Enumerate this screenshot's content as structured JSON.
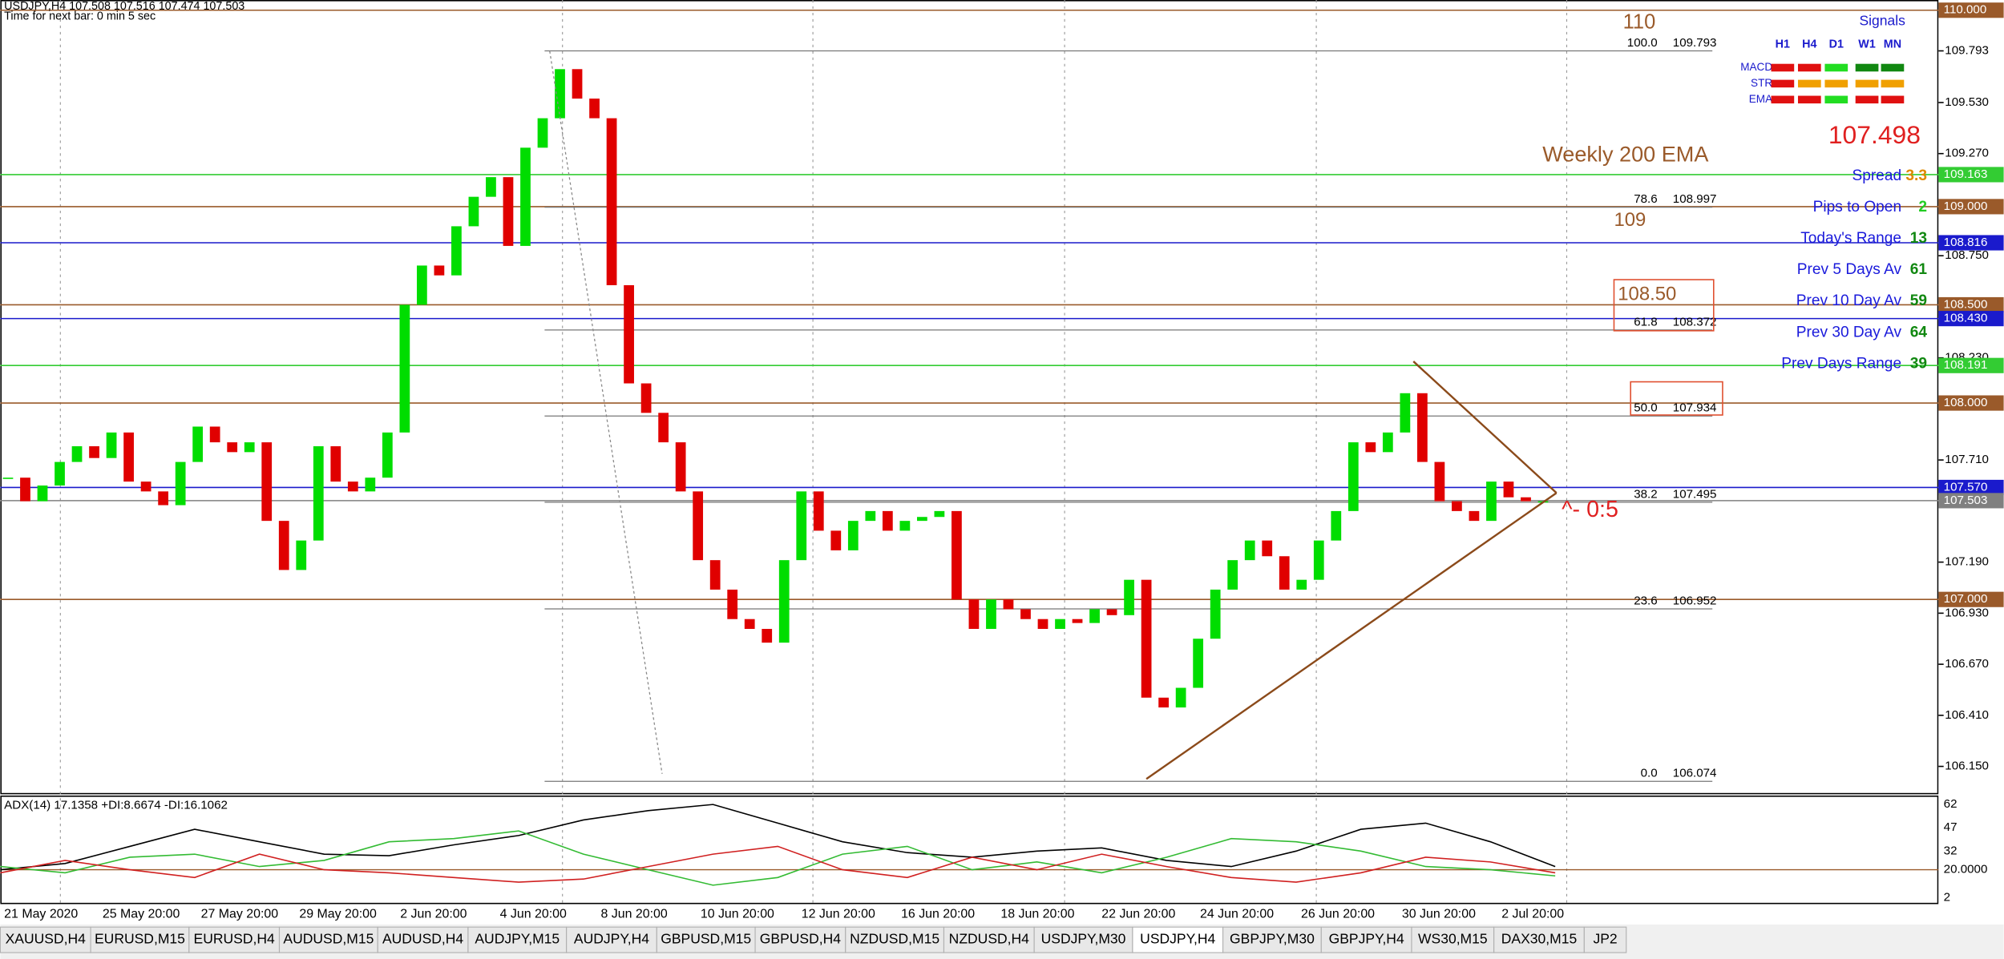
{
  "window": {
    "symbol_line": "USDJPY,H4  107.508 107.516 107.474 107.503",
    "timer": "Time for next bar: 0 min 5 sec"
  },
  "chart_data": {
    "type": "candlestick",
    "ylim": [
      106.021,
      110.052
    ],
    "up_color": "#00dd00",
    "down_color": "#e00000",
    "closes": [
      107.62,
      107.5,
      107.58,
      107.7,
      107.78,
      107.72,
      107.85,
      107.6,
      107.55,
      107.48,
      107.7,
      107.88,
      107.8,
      107.75,
      107.8,
      107.4,
      107.15,
      107.3,
      107.78,
      107.6,
      107.55,
      107.62,
      107.85,
      108.5,
      108.7,
      108.65,
      108.9,
      109.05,
      109.15,
      108.8,
      109.3,
      109.45,
      109.7,
      109.55,
      109.45,
      108.6,
      108.1,
      107.95,
      107.8,
      107.55,
      107.2,
      107.05,
      106.9,
      106.85,
      106.78,
      107.2,
      107.55,
      107.35,
      107.25,
      107.4,
      107.45,
      107.35,
      107.4,
      107.42,
      107.45,
      107.0,
      106.85,
      107.0,
      106.95,
      106.9,
      106.85,
      106.9,
      106.88,
      106.95,
      106.92,
      107.1,
      106.5,
      106.45,
      106.55,
      106.8,
      107.05,
      107.2,
      107.3,
      107.22,
      107.05,
      107.1,
      107.3,
      107.45,
      107.8,
      107.75,
      107.85,
      108.05,
      107.7,
      107.5,
      107.45,
      107.4,
      107.6,
      107.52,
      107.5,
      107.5
    ],
    "yticks": [
      {
        "value": 109.793,
        "label": "109.793"
      },
      {
        "value": 109.53,
        "label": "109.530"
      },
      {
        "value": 109.27,
        "label": "109.270"
      },
      {
        "value": 108.75,
        "label": "108.750"
      },
      {
        "value": 108.23,
        "label": "108.230"
      },
      {
        "value": 107.71,
        "label": "107.710"
      },
      {
        "value": 107.19,
        "label": "107.190"
      },
      {
        "value": 106.93,
        "label": "106.930"
      },
      {
        "value": 106.67,
        "label": "106.670"
      },
      {
        "value": 106.41,
        "label": "106.410"
      },
      {
        "value": 106.15,
        "label": "106.150"
      }
    ]
  },
  "price_levels": [
    {
      "value": 110,
      "label": "110.000",
      "color": "#9a5a2a"
    },
    {
      "value": 109.163,
      "label": "109.163",
      "color": "#33cc33"
    },
    {
      "value": 109,
      "label": "109.000",
      "color": "#9a5a2a"
    },
    {
      "value": 108.816,
      "label": "108.816",
      "color": "#1a1acc"
    },
    {
      "value": 108.5,
      "label": "108.500",
      "color": "#9a5a2a"
    },
    {
      "value": 108.43,
      "label": "108.430",
      "color": "#1a1acc"
    },
    {
      "value": 108.191,
      "label": "108.191",
      "color": "#33cc33"
    },
    {
      "value": 108,
      "label": "108.000",
      "color": "#9a5a2a"
    },
    {
      "value": 107.57,
      "label": "107.570",
      "color": "#1a1acc"
    },
    {
      "value": 107.503,
      "label": "107.503",
      "color": "#808080"
    },
    {
      "value": 107,
      "label": "107.000",
      "color": "#9a5a2a"
    }
  ],
  "fib_levels": [
    {
      "level": "100.0",
      "price": 109.793
    },
    {
      "level": "78.6",
      "price": 108.997
    },
    {
      "level": "61.8",
      "price": 108.372
    },
    {
      "level": "50.0",
      "price": 107.934
    },
    {
      "level": "38.2",
      "price": 107.495
    },
    {
      "level": "23.6",
      "price": 106.952
    },
    {
      "level": "0.0",
      "price": 106.074
    }
  ],
  "annotations": {
    "level_110": "110",
    "level_109": "109",
    "level_108_50": "108.50",
    "weekly_ema": "Weekly 200 EMA",
    "triangle_note": "^- 0:5"
  },
  "signals": {
    "title": "Signals",
    "columns": [
      "H1",
      "H4",
      "D1",
      "W1",
      "MN"
    ],
    "rows": [
      {
        "name": "MACD",
        "colors": [
          "#e01010",
          "#e01010",
          "#22dd22",
          "#118811",
          "#118811"
        ]
      },
      {
        "name": "STR",
        "colors": [
          "#e01010",
          "#f0a000",
          "#f0a000",
          "#f0a000",
          "#f0a000"
        ]
      },
      {
        "name": "EMA",
        "colors": [
          "#e01010",
          "#e01010",
          "#22dd22",
          "#e01010",
          "#e01010"
        ]
      }
    ]
  },
  "info": {
    "price": 107.498,
    "rows": [
      {
        "label": "Spread",
        "value": 3.3,
        "color": "#e08a00"
      },
      {
        "label": "Pips to Open",
        "value": 2,
        "color": "#22cc22"
      },
      {
        "label": "Today's Range",
        "value": 13,
        "color": "#118811"
      },
      {
        "label": "Prev 5 Days Av",
        "value": 61,
        "color": "#118811"
      },
      {
        "label": "Prev 10 Day Av",
        "value": 59,
        "color": "#118811"
      },
      {
        "label": "Prev 30 Day Av",
        "value": 64,
        "color": "#118811"
      },
      {
        "label": "Prev Days Range",
        "value": 39,
        "color": "#118811"
      }
    ]
  },
  "adx": {
    "title": "ADX(14) 17.1358 +DI:8.6674 -DI:16.1062",
    "ylim": [
      -1.3,
      66.9
    ],
    "yticks": [
      62,
      47,
      32,
      {
        "value": 20,
        "label": "20.0000"
      },
      2
    ],
    "series": [
      {
        "color": "#000000",
        "values": [
          20,
          24,
          35,
          46,
          38,
          30,
          29,
          36,
          42,
          52,
          58,
          62,
          50,
          38,
          31,
          28,
          32,
          34,
          26,
          22,
          32,
          46,
          50,
          38,
          22
        ]
      },
      {
        "color": "#33bb33",
        "values": [
          22,
          18,
          28,
          30,
          22,
          26,
          38,
          40,
          45,
          30,
          20,
          10,
          15,
          30,
          35,
          20,
          25,
          18,
          28,
          40,
          38,
          32,
          22,
          20,
          16
        ]
      },
      {
        "color": "#d02020",
        "values": [
          18,
          26,
          20,
          15,
          30,
          20,
          18,
          15,
          12,
          14,
          22,
          30,
          35,
          20,
          15,
          28,
          20,
          30,
          22,
          15,
          12,
          18,
          28,
          25,
          18
        ]
      }
    ]
  },
  "time_labels": [
    "21 May 2020",
    "25 May 20:00",
    "27 May 20:00",
    "29 May 20:00",
    "2 Jun 20:00",
    "4 Jun 20:00",
    "8 Jun 20:00",
    "10 Jun 20:00",
    "12 Jun 20:00",
    "16 Jun 20:00",
    "18 Jun 20:00",
    "22 Jun 20:00",
    "24 Jun 20:00",
    "26 Jun 20:00",
    "30 Jun 20:00",
    "2 Jul 20:00"
  ],
  "tabs": [
    "XAUUSD,H4",
    "EURUSD,M15",
    "EURUSD,H4",
    "AUDUSD,M15",
    "AUDUSD,H4",
    "AUDJPY,M15",
    "AUDJPY,H4",
    "GBPUSD,M15",
    "GBPUSD,H4",
    "NZDUSD,M15",
    "NZDUSD,H4",
    "USDJPY,M30",
    "USDJPY,H4",
    "GBPJPY,M30",
    "GBPJPY,H4",
    "WS30,M15",
    "DAX30,M15",
    "JP2"
  ]
}
